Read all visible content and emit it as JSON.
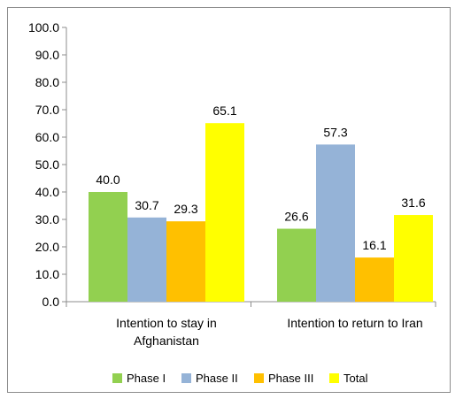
{
  "chart_data": {
    "type": "bar",
    "categories": [
      [
        "Intention to stay in",
        "Afghanistan"
      ],
      [
        "Intention to return to Iran"
      ]
    ],
    "series": [
      {
        "name": "Phase I",
        "color": "#92D050",
        "values": [
          40.0,
          26.6
        ]
      },
      {
        "name": "Phase II",
        "color": "#95B3D7",
        "values": [
          30.7,
          57.3
        ]
      },
      {
        "name": "Phase III",
        "color": "#FFC000",
        "values": [
          29.3,
          16.1
        ]
      },
      {
        "name": "Total",
        "color": "#FFFF00",
        "values": [
          65.1,
          31.6
        ]
      }
    ],
    "ylim": [
      0,
      100
    ],
    "yticks": [
      "0.0",
      "10.0",
      "20.0",
      "30.0",
      "40.0",
      "50.0",
      "60.0",
      "70.0",
      "80.0",
      "90.0",
      "100.0"
    ],
    "grid": false,
    "legend_position": "bottom",
    "title": "",
    "xlabel": "",
    "ylabel": ""
  }
}
